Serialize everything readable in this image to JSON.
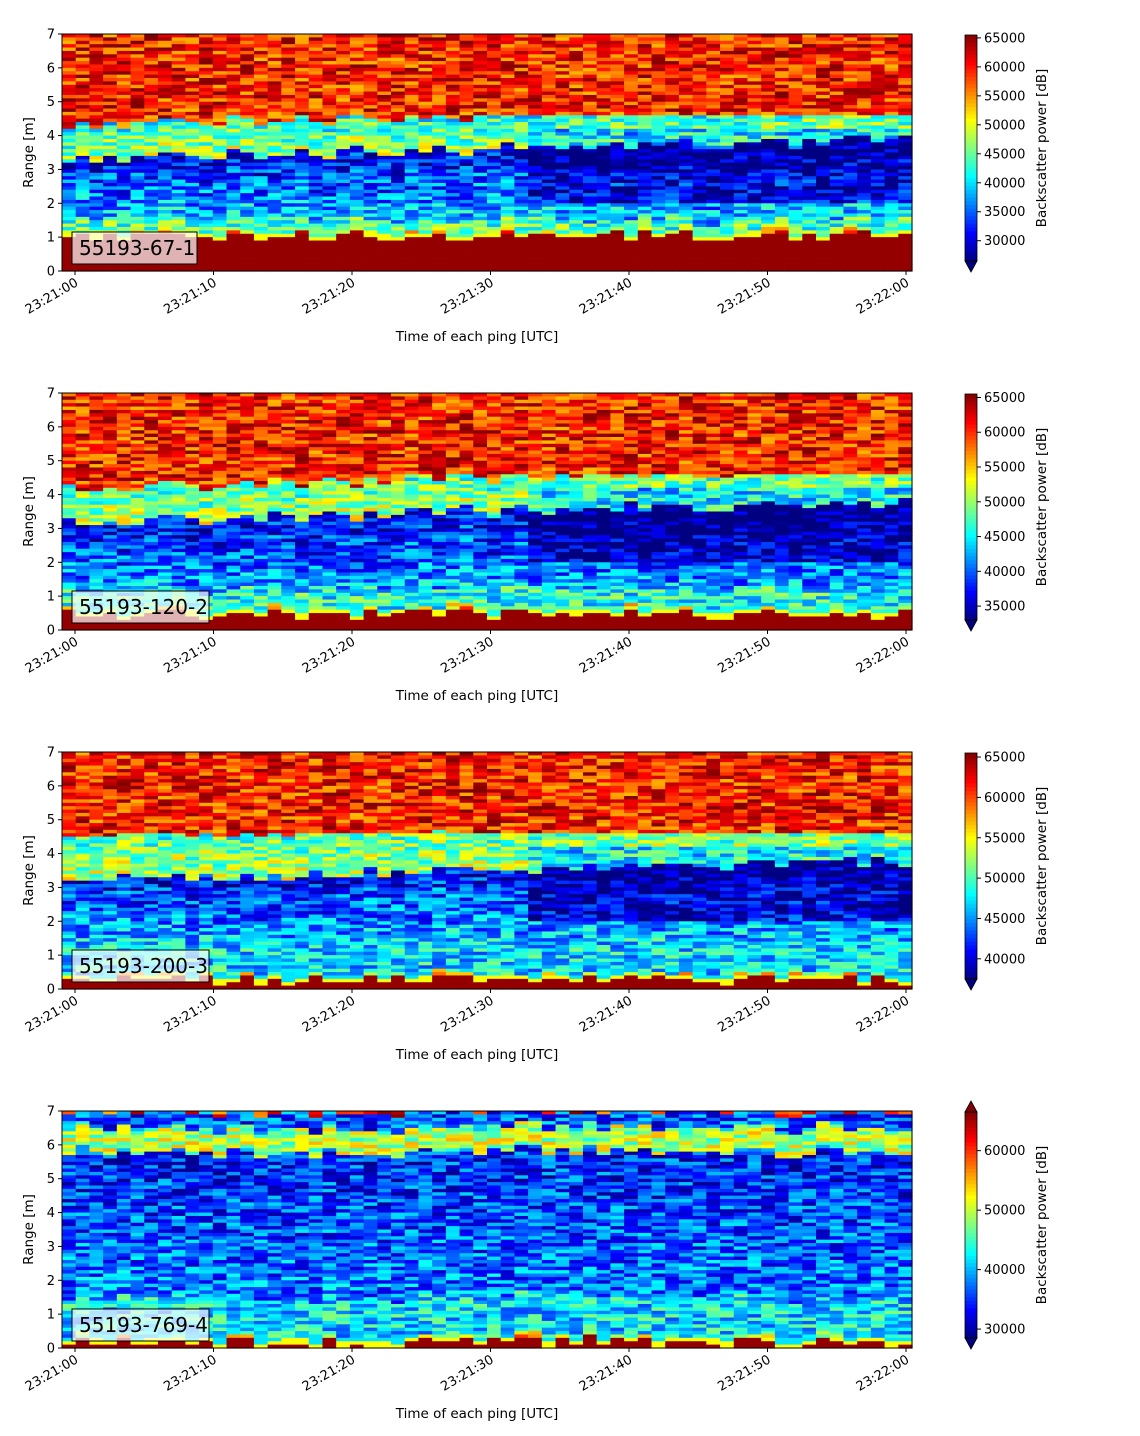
{
  "chart_data": [
    {
      "type": "heatmap",
      "tag": "55193-67-1",
      "xlabel": "Time of each ping [UTC]",
      "ylabel": "Range [m]",
      "x_ticks": [
        "23:21:00",
        "23:21:10",
        "23:21:20",
        "23:21:30",
        "23:21:40",
        "23:21:50",
        "23:22:00"
      ],
      "y_ticks": [
        "0",
        "1",
        "2",
        "3",
        "4",
        "5",
        "6",
        "7"
      ],
      "ylim": [
        0,
        7
      ],
      "colorbar": {
        "label": "Backscatter power [dB]",
        "ticks": [
          "30000",
          "35000",
          "40000",
          "45000",
          "50000",
          "55000",
          "60000",
          "65000"
        ],
        "range": [
          26500,
          65500
        ],
        "extend": "min",
        "colormap": "jet"
      },
      "profile": {
        "surface_top_m": 1.15,
        "layers": [
          {
            "from_m": 1.15,
            "to_m": 1.5,
            "level": 0.45
          },
          {
            "from_m": 1.5,
            "to_m": 3.3,
            "level_start": 0.35,
            "level_end": 0.1
          },
          {
            "from_m": 3.3,
            "to_m": 4.3,
            "level_start": 0.55,
            "level_end": 0.4
          },
          {
            "from_m": 4.3,
            "to_m": 7.0,
            "level": 0.85
          }
        ]
      }
    },
    {
      "type": "heatmap",
      "tag": "55193-120-2",
      "xlabel": "Time of each ping [UTC]",
      "ylabel": "Range [m]",
      "x_ticks": [
        "23:21:00",
        "23:21:10",
        "23:21:20",
        "23:21:30",
        "23:21:40",
        "23:21:50",
        "23:22:00"
      ],
      "y_ticks": [
        "0",
        "1",
        "2",
        "3",
        "4",
        "5",
        "6",
        "7"
      ],
      "ylim": [
        0,
        7
      ],
      "colorbar": {
        "label": "Backscatter power [dB]",
        "ticks": [
          "35000",
          "40000",
          "45000",
          "50000",
          "55000",
          "60000",
          "65000"
        ],
        "range": [
          33000,
          65500
        ],
        "extend": "min",
        "colormap": "jet"
      },
      "profile": {
        "surface_top_m": 0.6,
        "layers": [
          {
            "from_m": 0.6,
            "to_m": 1.2,
            "level": 0.4
          },
          {
            "from_m": 1.2,
            "to_m": 3.2,
            "level_start": 0.3,
            "level_end": 0.1
          },
          {
            "from_m": 3.2,
            "to_m": 4.2,
            "level_start": 0.55,
            "level_end": 0.45
          },
          {
            "from_m": 4.2,
            "to_m": 7.0,
            "level": 0.85
          }
        ]
      }
    },
    {
      "type": "heatmap",
      "tag": "55193-200-3",
      "xlabel": "Time of each ping [UTC]",
      "ylabel": "Range [m]",
      "x_ticks": [
        "23:21:00",
        "23:21:10",
        "23:21:20",
        "23:21:30",
        "23:21:40",
        "23:21:50",
        "23:22:00"
      ],
      "y_ticks": [
        "0",
        "1",
        "2",
        "3",
        "4",
        "5",
        "6",
        "7"
      ],
      "ylim": [
        0,
        7
      ],
      "colorbar": {
        "label": "Backscatter power [dB]",
        "ticks": [
          "40000",
          "45000",
          "50000",
          "55000",
          "60000",
          "65000"
        ],
        "range": [
          37500,
          65500
        ],
        "extend": "min",
        "colormap": "jet"
      },
      "profile": {
        "surface_top_m": 0.4,
        "layers": [
          {
            "from_m": 0.4,
            "to_m": 1.2,
            "level": 0.35
          },
          {
            "from_m": 1.2,
            "to_m": 3.2,
            "level_start": 0.35,
            "level_end": 0.12
          },
          {
            "from_m": 3.2,
            "to_m": 4.5,
            "level_start": 0.55,
            "level_end": 0.45
          },
          {
            "from_m": 4.5,
            "to_m": 7.0,
            "level": 0.85
          }
        ]
      }
    },
    {
      "type": "heatmap",
      "tag": "55193-769-4",
      "xlabel": "Time of each ping [UTC]",
      "ylabel": "Range [m]",
      "x_ticks": [
        "23:21:00",
        "23:21:10",
        "23:21:20",
        "23:21:30",
        "23:21:40",
        "23:21:50",
        "23:22:00"
      ],
      "y_ticks": [
        "0",
        "1",
        "2",
        "3",
        "4",
        "5",
        "6",
        "7"
      ],
      "ylim": [
        0,
        7
      ],
      "colorbar": {
        "label": "Backscatter power [dB]",
        "ticks": [
          "30000",
          "40000",
          "50000",
          "60000"
        ],
        "range": [
          28500,
          66500
        ],
        "extend": "both",
        "colormap": "jet"
      },
      "profile": {
        "surface_top_m": 0.3,
        "layers": [
          {
            "from_m": 0.3,
            "to_m": 1.5,
            "level": 0.35
          },
          {
            "from_m": 1.5,
            "to_m": 5.8,
            "level_start": 0.25,
            "level_end": 0.15
          },
          {
            "from_m": 5.8,
            "to_m": 6.5,
            "level": 0.55
          },
          {
            "from_m": 6.5,
            "to_m": 7.0,
            "level": 0.2
          }
        ]
      }
    }
  ]
}
